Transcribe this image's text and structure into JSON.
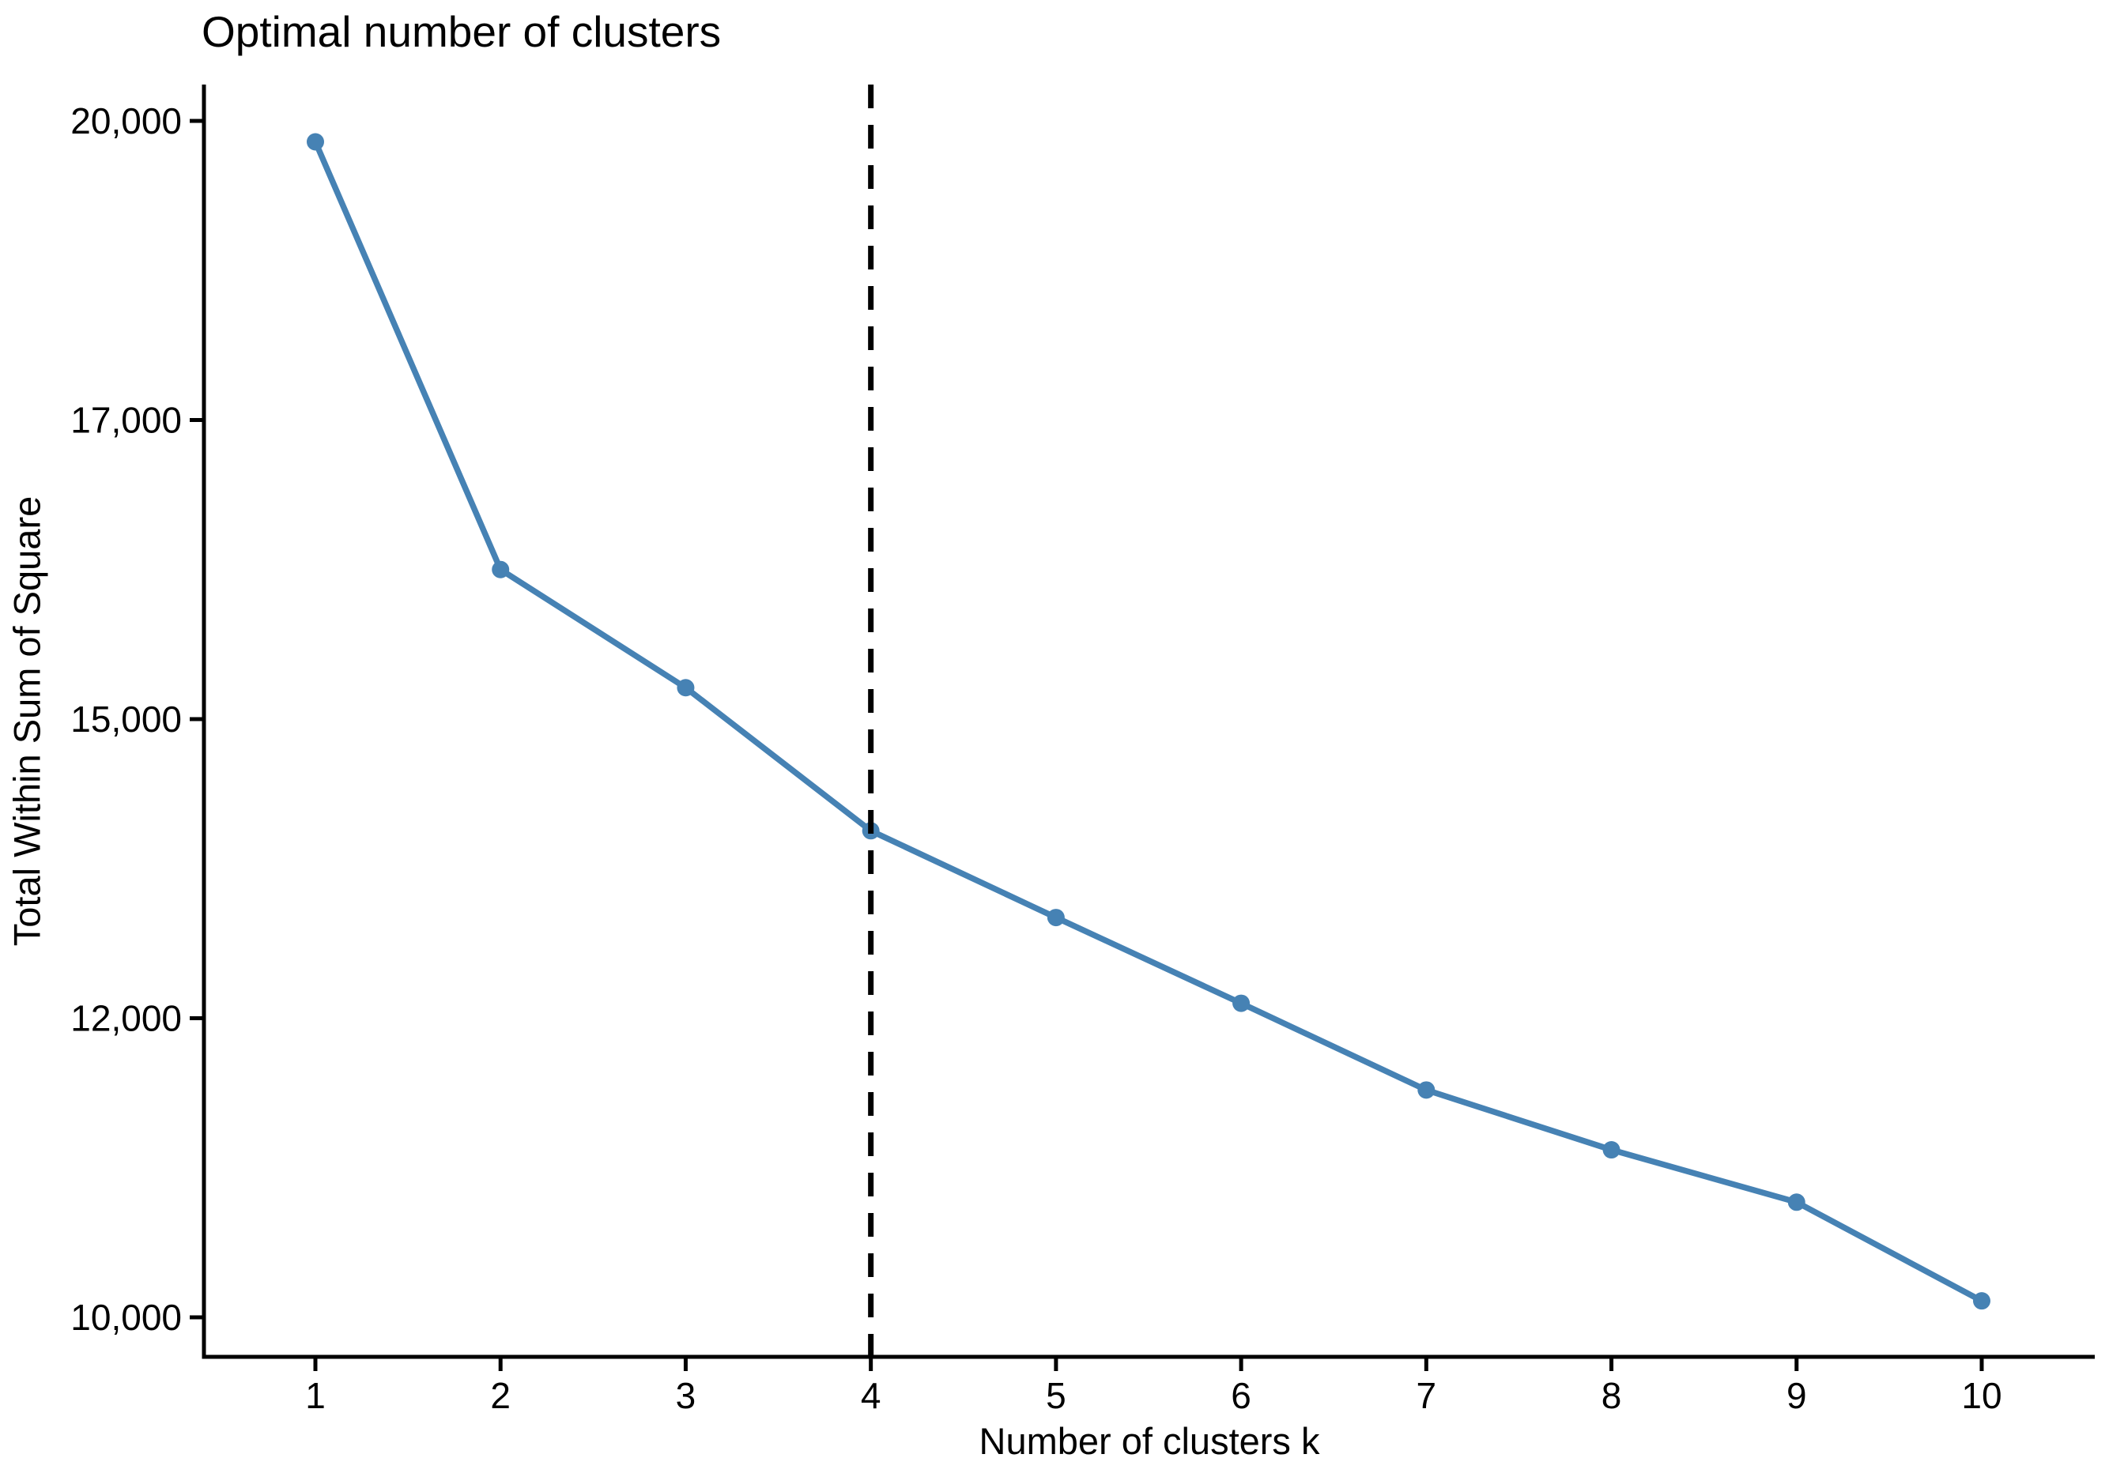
{
  "page": {
    "background": "#FFFFFF"
  },
  "chart_data": {
    "type": "line",
    "title": "Optimal number of clusters",
    "xlabel": "Number of clusters k",
    "ylabel": "Total Within Sum of Square",
    "x": [
      1,
      2,
      3,
      4,
      5,
      6,
      7,
      8,
      9,
      10
    ],
    "x_tick_labels": [
      "1",
      "2",
      "3",
      "4",
      "5",
      "6",
      "7",
      "8",
      "9",
      "10"
    ],
    "series": [
      {
        "name": "Total Within Sum of Square",
        "values": [
          19790,
          16000,
          15210,
          13880,
          13010,
          12150,
          11520,
          11120,
          10770,
          10110
        ]
      }
    ],
    "y_ticks": {
      "values": [
        20000,
        17000,
        15000,
        12000,
        10000
      ],
      "labels": [
        "20,000",
        "17,000",
        "15,000",
        "12,000",
        "10,000"
      ],
      "note": "tick marks are evenly spaced on the axis although value gaps alternate 3000/2000"
    },
    "elbow_vline_x": 4,
    "vline_style": "dashed",
    "marker": "circle",
    "grid": false,
    "legend": "none",
    "colors": {
      "series": "#4682B4",
      "vline": "#000000",
      "axis": "#000000",
      "text": "#000000",
      "background": "#FFFFFF"
    }
  }
}
